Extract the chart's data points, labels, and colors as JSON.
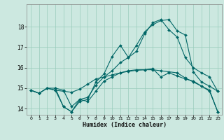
{
  "xlabel": "Humidex (Indice chaleur)",
  "bg_color": "#cce8e0",
  "line_color": "#006666",
  "grid_color": "#99ccbb",
  "xlim": [
    -0.5,
    23.5
  ],
  "ylim": [
    13.7,
    19.1
  ],
  "yticks": [
    14,
    15,
    16,
    17,
    18
  ],
  "xticks": [
    0,
    1,
    2,
    3,
    4,
    5,
    6,
    7,
    8,
    9,
    10,
    11,
    12,
    13,
    14,
    15,
    16,
    17,
    18,
    19,
    20,
    21,
    22,
    23
  ],
  "line1_x": [
    0,
    1,
    2,
    3,
    4,
    5,
    6,
    7,
    8,
    9,
    10,
    11,
    12,
    13,
    14,
    15,
    16,
    17,
    18,
    19,
    20,
    21,
    22,
    23
  ],
  "line1_y": [
    14.9,
    14.75,
    15.0,
    15.0,
    14.1,
    13.85,
    14.45,
    14.35,
    14.85,
    15.35,
    15.55,
    15.75,
    15.85,
    15.9,
    15.9,
    15.9,
    15.85,
    15.8,
    15.75,
    15.5,
    15.3,
    15.1,
    14.85,
    13.85
  ],
  "line2_x": [
    0,
    1,
    2,
    3,
    4,
    5,
    6,
    7,
    8,
    9,
    10,
    11,
    12,
    13,
    14,
    15,
    16,
    17,
    18,
    19,
    20,
    21,
    22,
    23
  ],
  "line2_y": [
    14.9,
    14.75,
    15.0,
    14.9,
    14.85,
    14.8,
    14.95,
    15.2,
    15.45,
    15.55,
    15.65,
    15.75,
    15.82,
    15.87,
    15.9,
    15.95,
    15.55,
    15.75,
    15.6,
    15.45,
    15.35,
    15.1,
    14.9,
    13.85
  ],
  "line3_x": [
    0,
    1,
    2,
    3,
    4,
    5,
    6,
    7,
    8,
    9,
    10,
    11,
    12,
    13,
    14,
    15,
    16,
    17,
    18,
    19,
    20,
    21,
    22,
    23
  ],
  "line3_y": [
    14.9,
    14.75,
    15.0,
    14.9,
    14.1,
    13.85,
    14.35,
    14.45,
    15.3,
    15.7,
    16.55,
    17.1,
    16.5,
    17.1,
    17.75,
    18.1,
    18.3,
    18.35,
    17.8,
    17.6,
    15.8,
    15.3,
    15.1,
    14.85
  ],
  "line4_x": [
    3,
    4,
    5,
    6,
    7,
    8,
    9,
    10,
    11,
    12,
    13,
    14,
    15,
    16,
    17,
    18,
    19,
    20,
    21,
    22,
    23
  ],
  "line4_y": [
    15.0,
    14.9,
    14.1,
    14.45,
    14.55,
    15.15,
    15.55,
    15.85,
    16.25,
    16.5,
    16.8,
    17.65,
    18.2,
    18.35,
    17.85,
    17.5,
    16.5,
    16.0,
    15.75,
    15.55,
    14.85
  ]
}
